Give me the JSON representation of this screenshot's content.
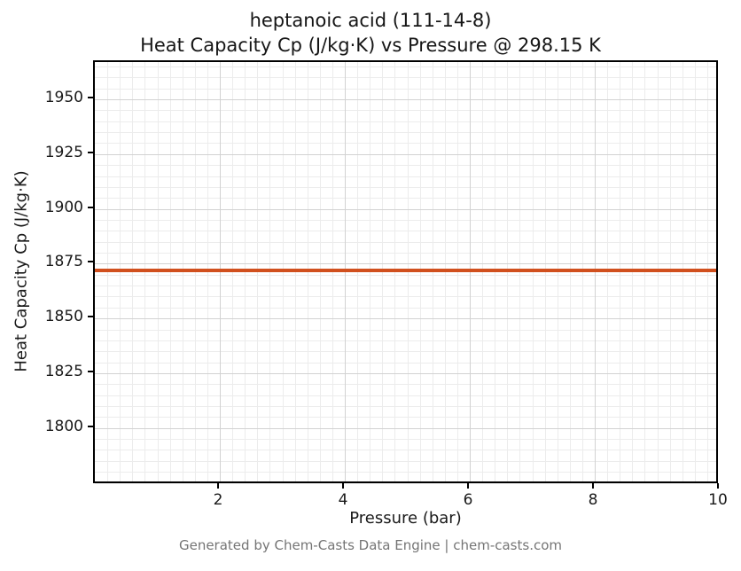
{
  "chart_data": {
    "type": "line",
    "title_line1": "heptanoic acid (111-14-8)",
    "title_line2": "Heat Capacity Cp (J/kg·K) vs Pressure @ 298.15 K",
    "xlabel": "Pressure (bar)",
    "ylabel": "Heat Capacity Cp (J/kg·K)",
    "xlim": [
      0,
      10
    ],
    "ylim": [
      1774,
      1967
    ],
    "x_ticks": [
      2,
      4,
      6,
      8,
      10
    ],
    "y_ticks": [
      1800,
      1825,
      1850,
      1875,
      1900,
      1925,
      1950
    ],
    "x_minor_step": 0.2,
    "y_minor_step": 5,
    "grid": true,
    "legend": "none",
    "series": [
      {
        "name": "Heat Capacity Cp",
        "x": [
          0,
          10
        ],
        "y": [
          1872,
          1872
        ],
        "color": "#d1501e",
        "line_width": 4
      }
    ],
    "constant_value": 1872
  },
  "footer": {
    "text": "Generated by Chem-Casts Data Engine | chem-casts.com"
  }
}
